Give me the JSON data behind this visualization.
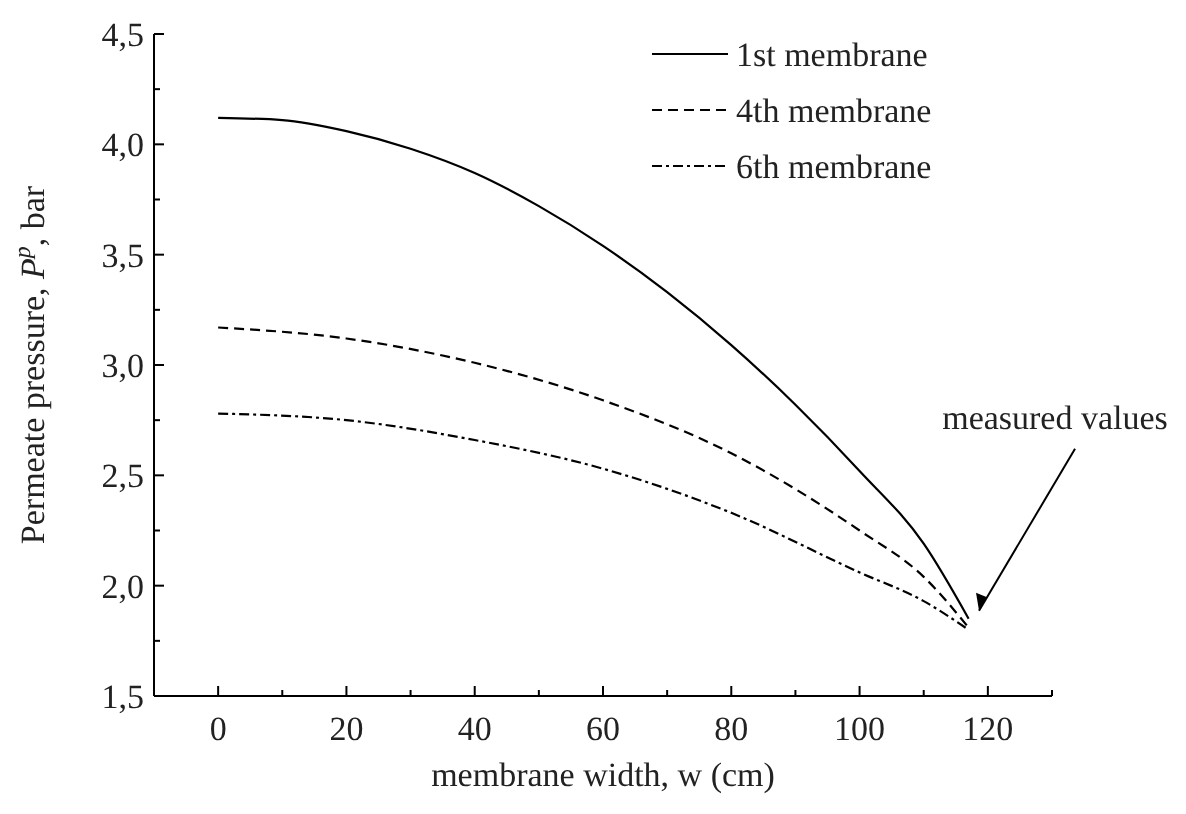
{
  "chart_data": {
    "type": "line",
    "xlabel": "membrane width, w (cm)",
    "ylabel": "Permeate pressure, P$^{p}$, bar",
    "xlim": [
      -10,
      130
    ],
    "xticks": [
      0,
      {
        "value": 10,
        "label": null
      },
      20,
      {
        "value": 30,
        "label": null
      },
      40,
      {
        "value": 50,
        "label": null
      },
      60,
      {
        "value": 70,
        "label": null
      },
      80,
      {
        "value": 90,
        "label": null
      },
      100,
      {
        "value": 110,
        "label": null
      },
      120,
      {
        "value": 130,
        "label": null
      }
    ],
    "ylim": [
      1.5,
      4.5
    ],
    "yticks": [
      {
        "value": 1.5,
        "label": "1,5"
      },
      {
        "value": 1.75,
        "label": null
      },
      {
        "value": 2,
        "label": "2,0"
      },
      {
        "value": 2.25,
        "label": null
      },
      {
        "value": 2.5,
        "label": "2,5"
      },
      {
        "value": 2.75,
        "label": null
      },
      {
        "value": 3,
        "label": "3,0"
      },
      {
        "value": 3.25,
        "label": null
      },
      {
        "value": 3.5,
        "label": "3,5"
      },
      {
        "value": 3.75,
        "label": null
      },
      {
        "value": 4,
        "label": "4,0"
      },
      {
        "value": 4.25,
        "label": null
      },
      {
        "value": 4.5,
        "label": "4,5"
      }
    ],
    "grid": false,
    "legend": "top right",
    "marker": "none",
    "annotations": [
      {
        "text": "measured values",
        "x": 118,
        "y": 1.85
      }
    ],
    "series": [
      {
        "name": "1st membrane",
        "color": "#000000",
        "line_style": "solid",
        "x": [
          0,
          10,
          20,
          30,
          40,
          50,
          60,
          70,
          80,
          90,
          100,
          110,
          117
        ],
        "values": [
          4.12,
          4.11,
          4.06,
          3.98,
          3.87,
          3.72,
          3.54,
          3.33,
          3.09,
          2.82,
          2.52,
          2.19,
          1.85
        ]
      },
      {
        "name": "4th membrane",
        "color": "#000000",
        "line_style": "dashed",
        "x": [
          0,
          20,
          40,
          60,
          80,
          100,
          110,
          117
        ],
        "values": [
          3.17,
          3.12,
          3.01,
          2.84,
          2.6,
          2.25,
          2.04,
          1.81
        ]
      },
      {
        "name": "6th membrane",
        "color": "#000000",
        "line_style": "dashdot",
        "x": [
          0,
          20,
          40,
          60,
          80,
          100,
          110,
          117
        ],
        "values": [
          2.78,
          2.75,
          2.66,
          2.53,
          2.33,
          2.06,
          1.93,
          1.8
        ]
      }
    ]
  }
}
